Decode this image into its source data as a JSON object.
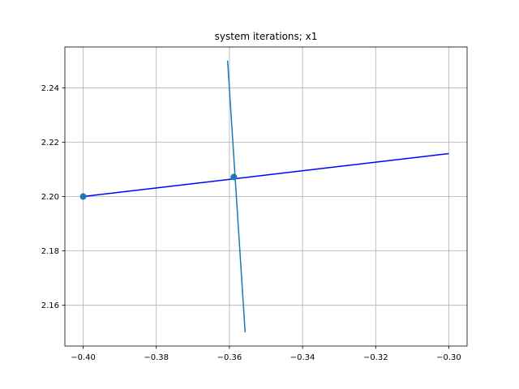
{
  "chart_data": {
    "type": "line",
    "title": "system iterations; x1",
    "xlabel": "",
    "ylabel": "",
    "xlim": [
      -0.405,
      -0.295
    ],
    "ylim": [
      2.145,
      2.255
    ],
    "grid": true,
    "xticks": [
      -0.4,
      -0.38,
      -0.36,
      -0.34,
      -0.32,
      -0.3
    ],
    "xtick_labels": [
      "−0.40",
      "−0.38",
      "−0.36",
      "−0.34",
      "−0.32",
      "−0.30"
    ],
    "yticks": [
      2.16,
      2.18,
      2.2,
      2.22,
      2.24
    ],
    "ytick_labels": [
      "2.16",
      "2.18",
      "2.20",
      "2.22",
      "2.24"
    ],
    "series": [
      {
        "color": "#0000ff",
        "points": [
          [
            -0.4,
            2.2
          ],
          [
            -0.3,
            2.2158
          ]
        ]
      },
      {
        "color": "#1f77b4",
        "points": [
          [
            -0.3605,
            2.25
          ],
          [
            -0.3557,
            2.15
          ]
        ]
      }
    ],
    "markers": [
      {
        "x": -0.4,
        "y": 2.2,
        "color": "#1f77b4"
      },
      {
        "x": -0.3588,
        "y": 2.2072,
        "color": "#1f77b4"
      }
    ]
  }
}
